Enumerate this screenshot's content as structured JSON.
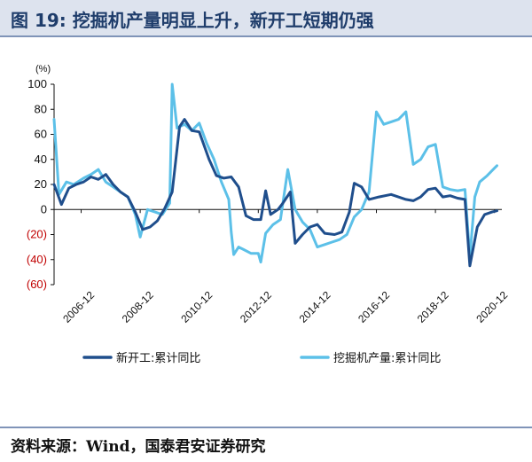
{
  "header": {
    "title": "图 19: 挖掘机产量明显上升，新开工短期仍强"
  },
  "footer": {
    "source": "资料来源：Wind，国泰君安证券研究"
  },
  "chart_data": {
    "type": "line",
    "unit_label": "(%)",
    "y_range": [
      -60,
      100
    ],
    "x_range": [
      "2006-01",
      "2021-03"
    ],
    "y_ticks": [
      {
        "value": 100,
        "label": "100"
      },
      {
        "value": 80,
        "label": "80"
      },
      {
        "value": 60,
        "label": "60"
      },
      {
        "value": 40,
        "label": "40"
      },
      {
        "value": 20,
        "label": "20"
      },
      {
        "value": 0,
        "label": "0"
      },
      {
        "value": -20,
        "label": "(20)"
      },
      {
        "value": -40,
        "label": "(40)"
      },
      {
        "value": -60,
        "label": "(60)"
      }
    ],
    "x_ticks": [
      "2006-12",
      "2008-12",
      "2010-12",
      "2012-12",
      "2014-12",
      "2016-12",
      "2018-12",
      "2020-12"
    ],
    "legend_position": "bottom",
    "grid": false,
    "series": [
      {
        "name": "新开工:累计同比",
        "color": "#1f4e8c",
        "points": [
          [
            "2006-01",
            20
          ],
          [
            "2006-04",
            4
          ],
          [
            "2006-07",
            17
          ],
          [
            "2006-10",
            20
          ],
          [
            "2007-01",
            22
          ],
          [
            "2007-04",
            26
          ],
          [
            "2007-07",
            24
          ],
          [
            "2007-10",
            28
          ],
          [
            "2008-01",
            20
          ],
          [
            "2008-04",
            14
          ],
          [
            "2008-07",
            10
          ],
          [
            "2008-10",
            -2
          ],
          [
            "2009-01",
            -16
          ],
          [
            "2009-04",
            -14
          ],
          [
            "2009-07",
            -9
          ],
          [
            "2009-10",
            1
          ],
          [
            "2010-01",
            14
          ],
          [
            "2010-04",
            66
          ],
          [
            "2010-06",
            72
          ],
          [
            "2010-09",
            63
          ],
          [
            "2010-12",
            62
          ],
          [
            "2011-04",
            40
          ],
          [
            "2011-07",
            27
          ],
          [
            "2011-10",
            25
          ],
          [
            "2012-01",
            26
          ],
          [
            "2012-04",
            18
          ],
          [
            "2012-07",
            -5
          ],
          [
            "2012-10",
            -8
          ],
          [
            "2013-01",
            -8
          ],
          [
            "2013-03",
            15
          ],
          [
            "2013-05",
            -4
          ],
          [
            "2013-08",
            0
          ],
          [
            "2013-10",
            5
          ],
          [
            "2014-01",
            14
          ],
          [
            "2014-03",
            -27
          ],
          [
            "2014-06",
            -20
          ],
          [
            "2014-09",
            -14
          ],
          [
            "2014-12",
            -12
          ],
          [
            "2015-03",
            -19
          ],
          [
            "2015-07",
            -20
          ],
          [
            "2015-10",
            -18
          ],
          [
            "2016-01",
            -2
          ],
          [
            "2016-03",
            21
          ],
          [
            "2016-06",
            18
          ],
          [
            "2016-09",
            8
          ],
          [
            "2017-01",
            10
          ],
          [
            "2017-06",
            12
          ],
          [
            "2017-12",
            8
          ],
          [
            "2018-03",
            7
          ],
          [
            "2018-06",
            10
          ],
          [
            "2018-09",
            16
          ],
          [
            "2018-12",
            17
          ],
          [
            "2019-03",
            10
          ],
          [
            "2019-06",
            11
          ],
          [
            "2019-09",
            9
          ],
          [
            "2019-12",
            8
          ],
          [
            "2020-02",
            -45
          ],
          [
            "2020-05",
            -14
          ],
          [
            "2020-08",
            -4
          ],
          [
            "2020-11",
            -2
          ],
          [
            "2021-01",
            -1
          ]
        ]
      },
      {
        "name": "挖掘机产量:累计同比",
        "color": "#5cc0e8",
        "points": [
          [
            "2006-01",
            72
          ],
          [
            "2006-03",
            12
          ],
          [
            "2006-06",
            22
          ],
          [
            "2006-09",
            20
          ],
          [
            "2007-01",
            25
          ],
          [
            "2007-04",
            28
          ],
          [
            "2007-07",
            32
          ],
          [
            "2007-10",
            22
          ],
          [
            "2008-01",
            18
          ],
          [
            "2008-04",
            14
          ],
          [
            "2008-07",
            10
          ],
          [
            "2008-10",
            -4
          ],
          [
            "2008-12",
            -22
          ],
          [
            "2009-03",
            0
          ],
          [
            "2009-06",
            -2
          ],
          [
            "2009-09",
            -4
          ],
          [
            "2009-12",
            5
          ],
          [
            "2010-01",
            100
          ],
          [
            "2010-03",
            65
          ],
          [
            "2010-06",
            68
          ],
          [
            "2010-09",
            63
          ],
          [
            "2010-12",
            69
          ],
          [
            "2011-03",
            53
          ],
          [
            "2011-06",
            40
          ],
          [
            "2011-09",
            22
          ],
          [
            "2011-12",
            8
          ],
          [
            "2012-01",
            -18
          ],
          [
            "2012-02",
            -36
          ],
          [
            "2012-04",
            -30
          ],
          [
            "2012-06",
            -32
          ],
          [
            "2012-09",
            -35
          ],
          [
            "2012-12",
            -35
          ],
          [
            "2013-01",
            -42
          ],
          [
            "2013-03",
            -19
          ],
          [
            "2013-06",
            -12
          ],
          [
            "2013-09",
            -8
          ],
          [
            "2013-12",
            32
          ],
          [
            "2014-03",
            0
          ],
          [
            "2014-06",
            -10
          ],
          [
            "2014-09",
            -16
          ],
          [
            "2014-12",
            -30
          ],
          [
            "2015-03",
            -28
          ],
          [
            "2015-06",
            -26
          ],
          [
            "2015-09",
            -24
          ],
          [
            "2015-12",
            -20
          ],
          [
            "2016-03",
            -6
          ],
          [
            "2016-06",
            0
          ],
          [
            "2016-09",
            14
          ],
          [
            "2016-12",
            78
          ],
          [
            "2017-03",
            68
          ],
          [
            "2017-06",
            70
          ],
          [
            "2017-09",
            72
          ],
          [
            "2017-12",
            78
          ],
          [
            "2018-03",
            36
          ],
          [
            "2018-06",
            40
          ],
          [
            "2018-09",
            50
          ],
          [
            "2018-12",
            52
          ],
          [
            "2019-03",
            18
          ],
          [
            "2019-06",
            16
          ],
          [
            "2019-09",
            15
          ],
          [
            "2019-12",
            16
          ],
          [
            "2020-02",
            -38
          ],
          [
            "2020-04",
            10
          ],
          [
            "2020-06",
            22
          ],
          [
            "2020-09",
            27
          ],
          [
            "2020-12",
            33
          ],
          [
            "2021-01",
            35
          ]
        ]
      }
    ]
  }
}
